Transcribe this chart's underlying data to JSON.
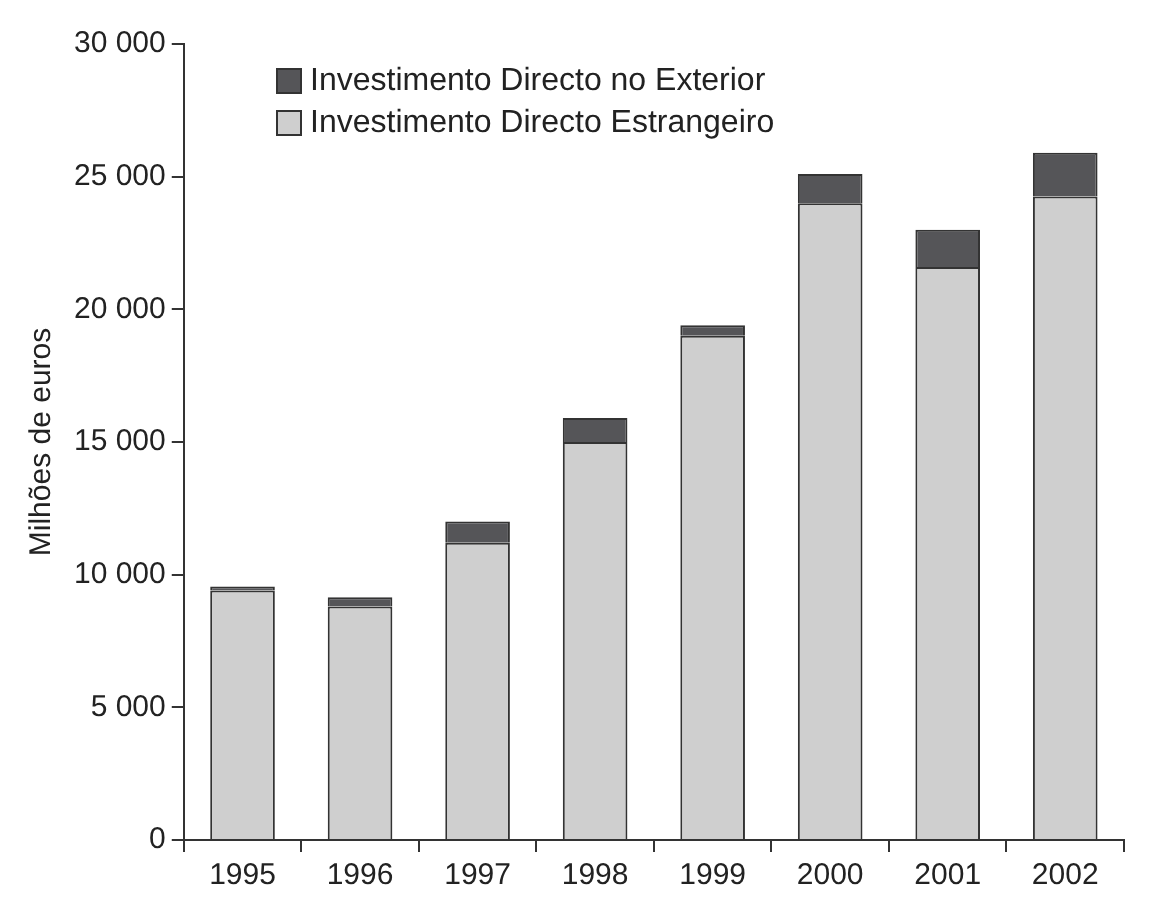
{
  "chart_data": {
    "type": "bar",
    "stacked": true,
    "ylabel": "Milhões de euros",
    "categories": [
      "1995",
      "1996",
      "1997",
      "1998",
      "1999",
      "2000",
      "2001",
      "2002"
    ],
    "series": [
      {
        "name": "Investimento Directo Estrangeiro",
        "color": "#cfcfcf",
        "values": [
          9400,
          8800,
          11200,
          15000,
          19000,
          24000,
          21600,
          24250
        ]
      },
      {
        "name": "Investimento Directo no Exterior",
        "color": "#555558",
        "values": [
          150,
          350,
          800,
          900,
          400,
          1100,
          1400,
          1650
        ]
      }
    ],
    "ylim": [
      0,
      30000
    ],
    "yticks": [
      {
        "value": 0,
        "label": "0"
      },
      {
        "value": 5000,
        "label": "5 000"
      },
      {
        "value": 10000,
        "label": "10 000"
      },
      {
        "value": 15000,
        "label": "15 000"
      },
      {
        "value": 20000,
        "label": "20 000"
      },
      {
        "value": 25000,
        "label": "25 000"
      },
      {
        "value": 30000,
        "label": "30 000"
      }
    ],
    "grid": false,
    "legend": "top left"
  }
}
